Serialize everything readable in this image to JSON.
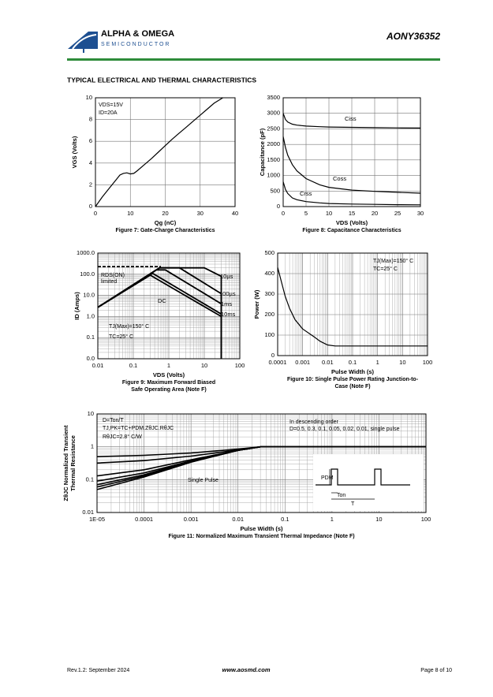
{
  "header": {
    "company": "ALPHA & OMEGA",
    "division": "SEMICONDUCTOR",
    "part": "AONY36352"
  },
  "section_title": "TYPICAL ELECTRICAL AND THERMAL CHARACTERISTICS",
  "footer": {
    "revision": "Rev.1.2: September 2024",
    "website": "www.aosmd.com",
    "page": "Page 8 of 10"
  },
  "chart_data": [
    {
      "type": "line",
      "title": "Figure 7: Gate-Charge Characteristics",
      "xlabel": "Qg (nC)",
      "ylabel": [
        "VGS (Volts)"
      ],
      "xlim": [
        0,
        40
      ],
      "xticks": [
        0,
        10,
        20,
        30,
        40
      ],
      "ylim": [
        0,
        10
      ],
      "yticks": [
        0,
        2,
        4,
        6,
        8,
        10
      ],
      "grid": true,
      "annotations": [
        "VDS=15V",
        "ID=20A"
      ],
      "series": [
        {
          "color": "#000000",
          "x": [
            0,
            2,
            4,
            6,
            7,
            8,
            9,
            10,
            11,
            12,
            14,
            16,
            18,
            20,
            22,
            24,
            26,
            28,
            30,
            32,
            34,
            36.5
          ],
          "values": [
            0,
            0.9,
            1.7,
            2.5,
            2.9,
            3.05,
            3.1,
            3.0,
            3.05,
            3.3,
            3.85,
            4.4,
            5.0,
            5.6,
            6.2,
            6.75,
            7.3,
            7.85,
            8.4,
            8.95,
            9.5,
            10
          ]
        }
      ]
    },
    {
      "type": "line",
      "title": "Figure 8: Capacitance Characteristics",
      "xlabel": "VDS (Volts)",
      "ylabel": [
        "Capacitance (pF)"
      ],
      "xlim": [
        0,
        30
      ],
      "xticks": [
        0,
        5,
        10,
        15,
        20,
        25,
        30
      ],
      "ylim": [
        0,
        3500
      ],
      "yticks": [
        0,
        500,
        1000,
        1500,
        2000,
        2500,
        3000,
        3500
      ],
      "grid": true,
      "series": [
        {
          "name": "Ciss",
          "color": "#000000",
          "x": [
            0,
            0.5,
            1,
            2,
            3,
            5,
            8,
            10,
            15,
            20,
            25,
            30
          ],
          "values": [
            3000,
            2800,
            2720,
            2650,
            2620,
            2590,
            2570,
            2560,
            2550,
            2540,
            2530,
            2525
          ]
        },
        {
          "name": "Coss",
          "color": "#000000",
          "x": [
            0,
            0.5,
            1,
            2,
            3,
            5,
            8,
            10,
            15,
            20,
            25,
            30
          ],
          "values": [
            2250,
            1900,
            1650,
            1350,
            1150,
            900,
            700,
            620,
            530,
            490,
            460,
            430
          ]
        },
        {
          "name": "Crss",
          "color": "#000000",
          "x": [
            0,
            0.5,
            1,
            2,
            3,
            5,
            8,
            10,
            15,
            20,
            25,
            30
          ],
          "values": [
            800,
            550,
            420,
            280,
            220,
            160,
            120,
            100,
            80,
            70,
            60,
            55
          ]
        }
      ]
    },
    {
      "type": "line",
      "title": [
        "Figure 9: Maximum Forward Biased",
        "Safe Operating Area (Note F)"
      ],
      "xlabel": "VDS (Volts)",
      "ylabel": [
        "ID (Amps)"
      ],
      "xscale": "log",
      "yscale": "log",
      "xlim": [
        0.01,
        100
      ],
      "xticks": [
        0.01,
        0.1,
        1,
        10,
        100
      ],
      "ylim": [
        0.01,
        1000
      ],
      "yticks": [
        {
          "value": 0.01,
          "label": "0.0"
        },
        0.1,
        {
          "value": 1,
          "label": "1.0"
        },
        {
          "value": 10,
          "label": "10.0"
        },
        {
          "value": 100,
          "label": "100.0"
        },
        {
          "value": 1000,
          "label": "1000.0"
        }
      ],
      "grid": true,
      "line_width": 1.8,
      "annotations": [
        "RDS(ON)",
        "limited",
        "TJ(Max)=150° C",
        "TC=25° C"
      ],
      "series": [
        {
          "name": "10µs",
          "color": "#000000",
          "x": [
            0.01,
            0.55,
            10,
            30,
            30
          ],
          "values": [
            2.7,
            200,
            200,
            80,
            0.01
          ]
        },
        {
          "name": "100µs",
          "color": "#000000",
          "x": [
            0.01,
            0.55,
            2,
            30,
            30
          ],
          "values": [
            2.7,
            200,
            200,
            12,
            0.01
          ]
        },
        {
          "name": "1ms",
          "color": "#000000",
          "x": [
            0.01,
            0.45,
            0.8,
            30,
            30
          ],
          "values": [
            2.7,
            160,
            160,
            4,
            0.01
          ]
        },
        {
          "name": "10ms",
          "color": "#000000",
          "x": [
            0.01,
            0.35,
            30,
            30
          ],
          "values": [
            2.7,
            110,
            1.3,
            0.01
          ]
        },
        {
          "name": "DC",
          "color": "#000000",
          "x": [
            0.01,
            0.3,
            30,
            30
          ],
          "values": [
            2.7,
            90,
            1.0,
            0.01
          ]
        },
        {
          "color": "#000000",
          "dash": true,
          "x": [
            0.01,
            0.6
          ],
          "values": [
            230,
            230
          ]
        }
      ]
    },
    {
      "type": "line",
      "title": [
        "Figure 10: Single Pulse Power Rating Junction-to-",
        "Case (Note F)"
      ],
      "xlabel": "Pulse Width (s)",
      "ylabel": [
        "Power (W)"
      ],
      "xscale": "log",
      "xlim": [
        0.0001,
        100
      ],
      "xticks": [
        0.0001,
        0.001,
        0.01,
        0.1,
        1,
        10,
        100
      ],
      "ylim": [
        0,
        500
      ],
      "yticks": [
        0,
        100,
        200,
        300,
        400,
        500
      ],
      "grid": true,
      "annotations": [
        "TJ(Max)=150° C",
        "TC=25° C"
      ],
      "series": [
        {
          "color": "#000000",
          "x": [
            0.0001,
            0.0002,
            0.0003,
            0.0005,
            0.001,
            0.002,
            0.003,
            0.005,
            0.01,
            0.02,
            0.1,
            1,
            10,
            100
          ],
          "values": [
            430,
            290,
            230,
            175,
            130,
            105,
            90,
            70,
            52,
            47,
            47,
            47,
            47,
            47
          ]
        }
      ]
    },
    {
      "type": "line",
      "title": "Figure 11: Normalized Maximum Transient Thermal Impedance (Note F)",
      "xlabel": "Pulse Width (s)",
      "ylabel": [
        "ZθJC Normalized Transient",
        "Thermal Resistance"
      ],
      "xscale": "log",
      "yscale": "log",
      "xlim": [
        1e-05,
        100
      ],
      "xticks": [
        {
          "value": 1e-05,
          "label": "1E-05"
        },
        0.0001,
        0.001,
        0.01,
        0.1,
        1,
        10,
        100
      ],
      "ylim": [
        0.01,
        10
      ],
      "yticks": [
        0.01,
        0.1,
        1,
        10
      ],
      "grid": true,
      "line_width": 1.6,
      "annotations": [
        "D=Ton/T",
        "TJ,PK=TC+PDM.ZθJC.RθJC",
        "RθJC=2.8° C/W",
        "In descending order",
        "D=0.5, 0.3, 0.1, 0.05, 0.02, 0.01, single pulse",
        "Single Pulse",
        "PDM",
        "Ton",
        "T"
      ],
      "series": [
        {
          "color": "#000000",
          "x": [
            1e-05,
            0.0001,
            0.001,
            0.01,
            0.03,
            100
          ],
          "values": [
            0.5,
            0.55,
            0.65,
            0.85,
            1,
            1
          ]
        },
        {
          "color": "#000000",
          "x": [
            1e-05,
            0.0001,
            0.001,
            0.01,
            0.03,
            100
          ],
          "values": [
            0.32,
            0.38,
            0.52,
            0.8,
            1,
            1
          ]
        },
        {
          "color": "#000000",
          "x": [
            1e-05,
            0.0001,
            0.001,
            0.01,
            0.03,
            100
          ],
          "values": [
            0.13,
            0.2,
            0.4,
            0.78,
            1,
            1
          ]
        },
        {
          "color": "#000000",
          "x": [
            1e-05,
            0.0001,
            0.001,
            0.01,
            0.03,
            100
          ],
          "values": [
            0.09,
            0.16,
            0.37,
            0.78,
            1,
            1
          ]
        },
        {
          "color": "#000000",
          "x": [
            1e-05,
            0.0001,
            0.001,
            0.01,
            0.03,
            100
          ],
          "values": [
            0.07,
            0.14,
            0.36,
            0.78,
            1,
            1
          ]
        },
        {
          "color": "#000000",
          "x": [
            1e-05,
            0.0001,
            0.001,
            0.01,
            0.03,
            100
          ],
          "values": [
            0.06,
            0.13,
            0.35,
            0.78,
            1,
            1
          ]
        },
        {
          "color": "#000000",
          "x": [
            1e-05,
            0.0001,
            0.001,
            0.01,
            0.03,
            100
          ],
          "values": [
            0.05,
            0.12,
            0.34,
            0.78,
            1,
            1
          ]
        }
      ]
    }
  ]
}
